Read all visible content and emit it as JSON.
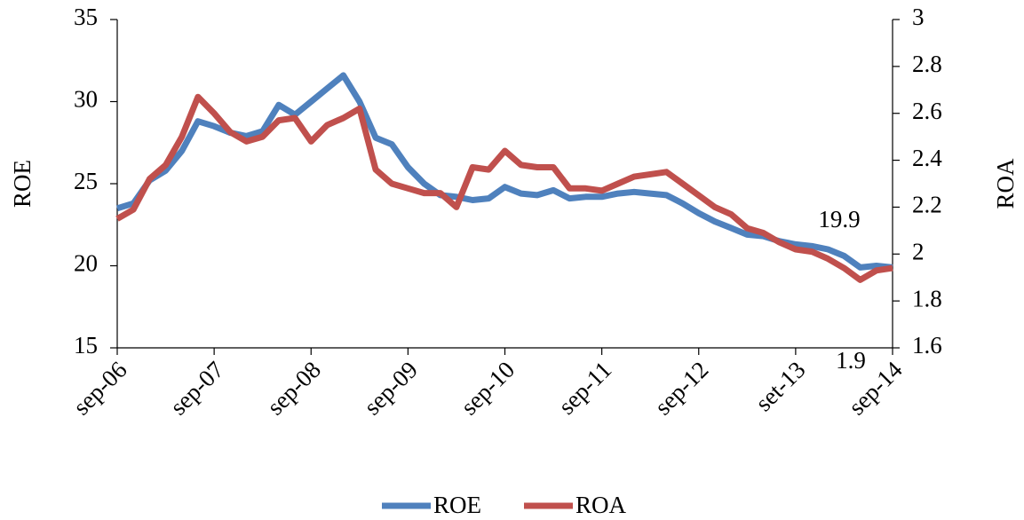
{
  "chart_data": {
    "type": "line",
    "categories": [
      "sep-06",
      null,
      null,
      null,
      null,
      null,
      "sep-07",
      null,
      null,
      null,
      null,
      null,
      "sep-08",
      null,
      null,
      null,
      null,
      null,
      "sep-09",
      null,
      null,
      null,
      null,
      null,
      "sep-10",
      null,
      null,
      null,
      null,
      null,
      "sep-11",
      null,
      null,
      null,
      null,
      null,
      "sep-12",
      null,
      null,
      null,
      null,
      null,
      "set-13",
      null,
      null,
      null,
      null,
      null,
      "sep-14"
    ],
    "ylabel": "ROE",
    "y2label": "ROA",
    "ylim": [
      15,
      35
    ],
    "yticks": [
      15,
      20,
      25,
      30,
      35
    ],
    "y2lim": [
      1.6,
      3.0
    ],
    "y2ticks": [
      1.6,
      1.8,
      2.0,
      2.2,
      2.4,
      2.6,
      2.8,
      3.0
    ],
    "series": [
      {
        "name": "ROE",
        "color": "#4f81bd",
        "values": [
          23.5,
          23.8,
          25.2,
          25.8,
          27.0,
          28.8,
          28.5,
          28.1,
          27.9,
          28.2,
          29.8,
          29.2,
          30.0,
          30.8,
          31.6,
          30.0,
          27.8,
          27.4,
          26.0,
          25.0,
          24.3,
          24.2,
          24.0,
          24.1,
          24.8,
          24.4,
          24.3,
          24.6,
          24.1,
          24.2,
          24.2,
          24.4,
          24.5,
          24.4,
          24.3,
          23.8,
          23.2,
          22.7,
          22.3,
          21.9,
          21.8,
          21.5,
          21.3,
          21.2,
          21.0,
          20.6,
          19.9,
          20.0,
          19.9
        ]
      },
      {
        "name": "ROA",
        "color": "#c0504d",
        "axis": "y2",
        "values": [
          2.15,
          2.19,
          2.32,
          2.38,
          2.5,
          2.67,
          2.6,
          2.52,
          2.48,
          2.5,
          2.57,
          2.58,
          2.48,
          2.55,
          2.58,
          2.62,
          2.36,
          2.3,
          2.28,
          2.26,
          2.26,
          2.2,
          2.37,
          2.36,
          2.44,
          2.38,
          2.37,
          2.37,
          2.28,
          2.28,
          2.27,
          2.3,
          2.33,
          2.34,
          2.35,
          2.3,
          2.25,
          2.2,
          2.17,
          2.11,
          2.09,
          2.05,
          2.02,
          2.01,
          1.98,
          1.94,
          1.89,
          1.93,
          1.94
        ]
      }
    ],
    "annotations": [
      "19.9",
      "1.9"
    ],
    "legend": "bottom"
  }
}
